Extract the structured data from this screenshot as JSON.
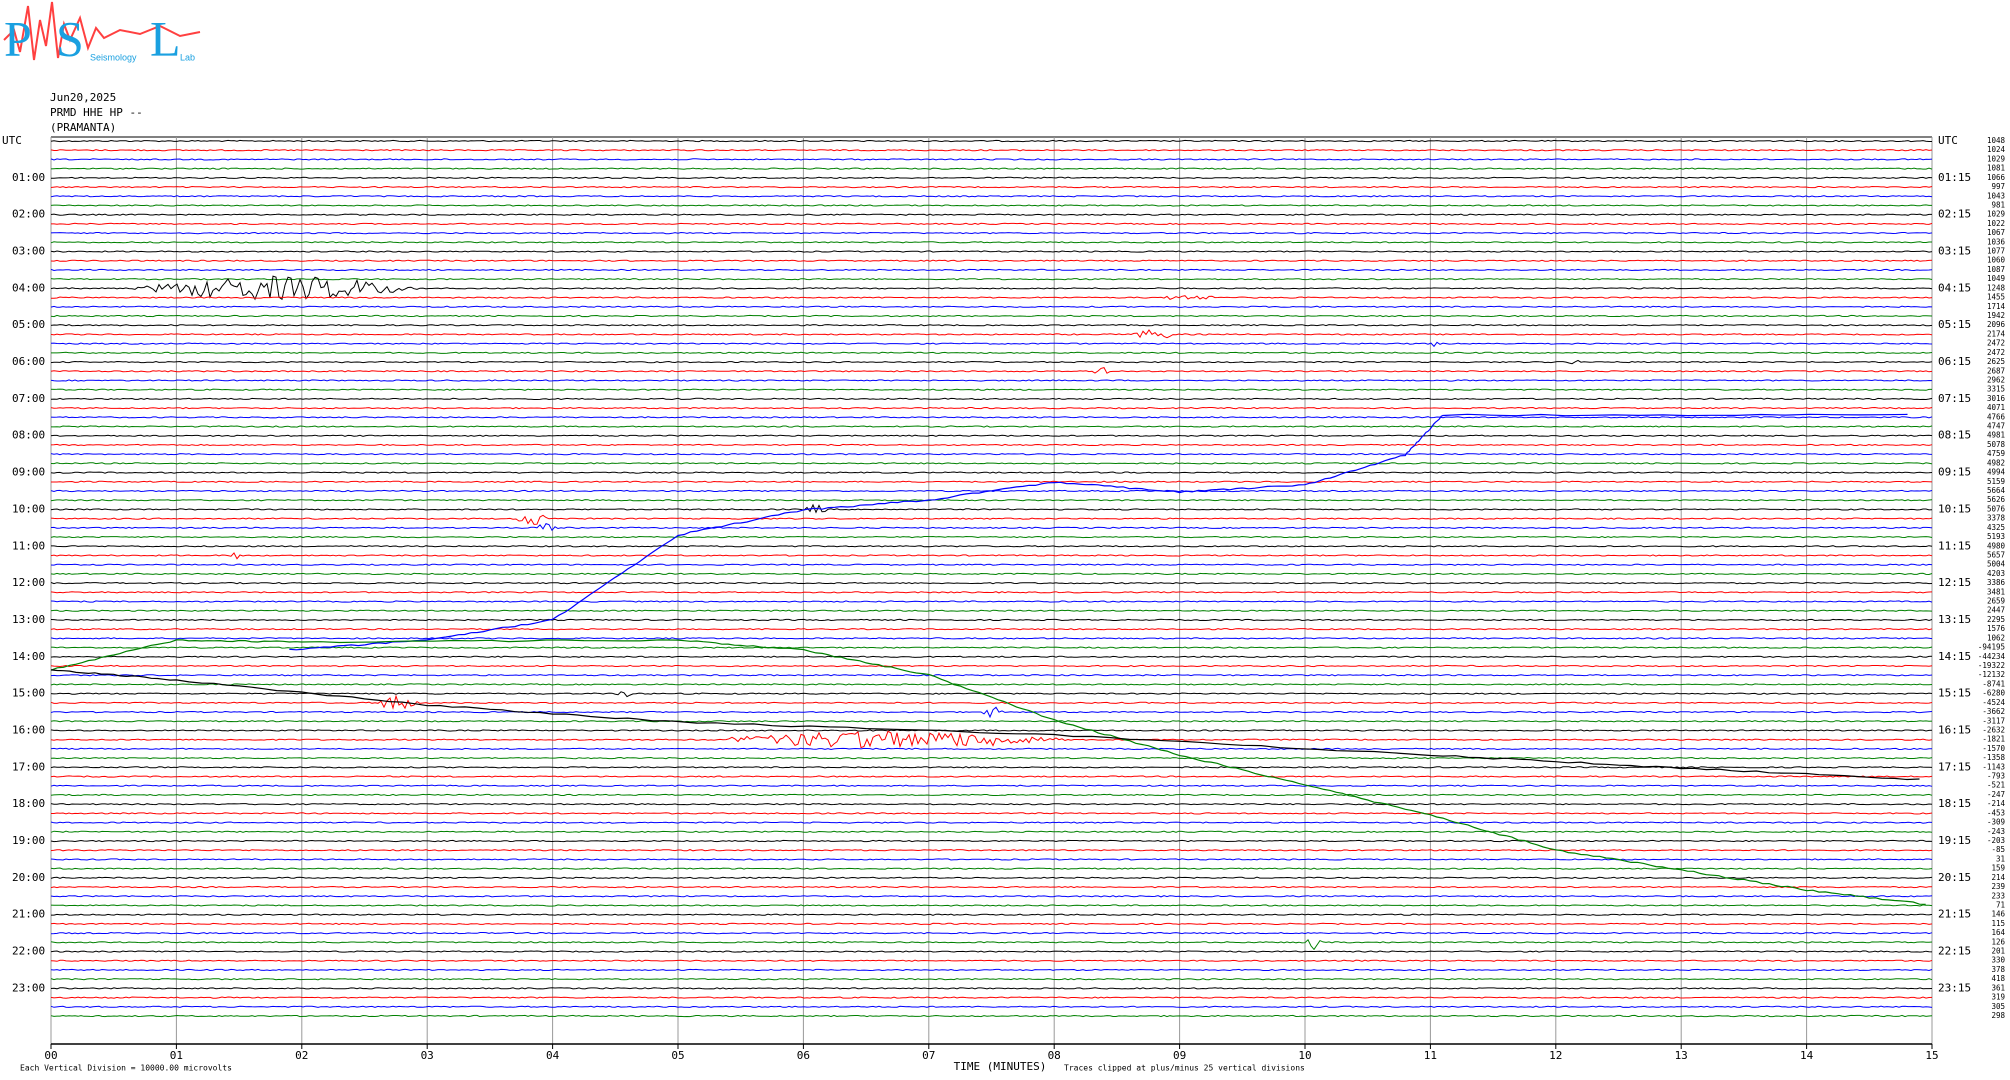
{
  "chart_data": {
    "type": "helicorder",
    "logo": {
      "letters": [
        "P",
        "S",
        "L"
      ],
      "word": "Seismology",
      "tail": "Lab"
    },
    "date": "Jun20,2025",
    "station": "PRMD HHE HP --",
    "site": "(PRAMANTA)",
    "left_labels": [
      "UTC",
      "01:00",
      "02:00",
      "03:00",
      "04:00",
      "05:00",
      "06:00",
      "07:00",
      "08:00",
      "09:00",
      "10:00",
      "11:00",
      "12:00",
      "13:00",
      "14:00",
      "15:00",
      "16:00",
      "17:00",
      "18:00",
      "19:00",
      "20:00",
      "21:00",
      "22:00",
      "23:00"
    ],
    "right_labels": [
      "UTC",
      "01:15",
      "02:15",
      "03:15",
      "04:15",
      "05:15",
      "06:15",
      "07:15",
      "08:15",
      "09:15",
      "10:15",
      "11:15",
      "12:15",
      "13:15",
      "14:15",
      "15:15",
      "16:15",
      "17:15",
      "18:15",
      "19:15",
      "20:15",
      "21:15",
      "22:15",
      "23:15"
    ],
    "trace_means": [
      1048,
      1024,
      1029,
      1081,
      1066,
      997,
      1043,
      981,
      1029,
      1022,
      1067,
      1036,
      1077,
      1060,
      1087,
      1049,
      1248,
      1455,
      1714,
      1942,
      2096,
      2174,
      2472,
      2472,
      2625,
      2687,
      2962,
      3315,
      3016,
      4071,
      4766,
      4747,
      4981,
      5078,
      4759,
      4982,
      4994,
      5159,
      5664,
      5626,
      5076,
      3378,
      4325,
      5193,
      4980,
      5657,
      5004,
      4203,
      3386,
      3481,
      2659,
      2447,
      2295,
      1576,
      1062,
      -94195,
      -44234,
      -19322,
      -12132,
      -8741,
      -6280,
      -4524,
      -3662,
      -3117,
      -2632,
      -1821,
      -1570,
      -1358,
      -1143,
      -793,
      -521,
      -247,
      -214,
      -453,
      -309,
      -243,
      -203,
      -85,
      31,
      159,
      214,
      239,
      233,
      71,
      146,
      115,
      164,
      126,
      201,
      330,
      378,
      418,
      361,
      319,
      305,
      298
    ],
    "trace_colors": [
      "#000000",
      "#ff0000",
      "#0000ff",
      "#008000"
    ],
    "xlabel": "TIME (MINUTES)",
    "scale_note": "Each Vertical Division = 10000.00 microvolts",
    "clip_note": "Traces clipped at plus/minus 25 vertical divisions",
    "xlim": [
      0,
      15
    ],
    "xticks": [
      {
        "value": 0,
        "label": "00"
      },
      {
        "value": 1,
        "label": "01"
      },
      {
        "value": 2,
        "label": "02"
      },
      {
        "value": 3,
        "label": "03"
      },
      {
        "value": 4,
        "label": "04"
      },
      {
        "value": 5,
        "label": "05"
      },
      {
        "value": 6,
        "label": "06"
      },
      {
        "value": 7,
        "label": "07"
      },
      {
        "value": 8,
        "label": "08"
      },
      {
        "value": 9,
        "label": "09"
      },
      {
        "value": 10,
        "label": "10"
      },
      {
        "value": 11,
        "label": "11"
      },
      {
        "value": 12,
        "label": "12"
      },
      {
        "value": 13,
        "label": "13"
      },
      {
        "value": 14,
        "label": "14"
      },
      {
        "value": 15,
        "label": "15"
      }
    ],
    "grid": true
  }
}
